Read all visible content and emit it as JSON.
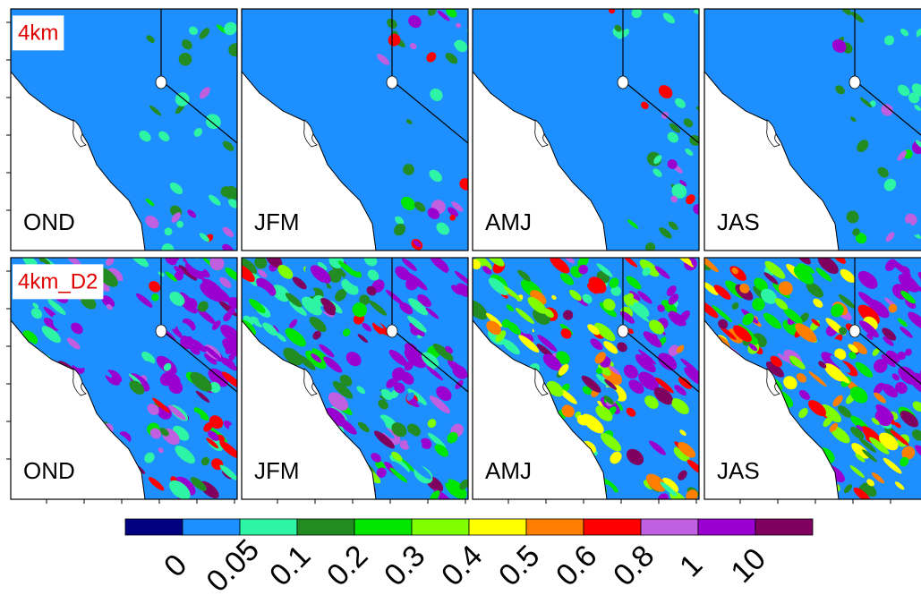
{
  "rows": [
    {
      "label": "4km",
      "panels": [
        "OND",
        "JFM",
        "AMJ",
        "JAS"
      ]
    },
    {
      "label": "4km_D2",
      "panels": [
        "OND",
        "JFM",
        "AMJ",
        "JAS"
      ]
    }
  ],
  "colorbar": {
    "colors": [
      "#000080",
      "#1e8fff",
      "#2ef5a5",
      "#228b22",
      "#00e600",
      "#7fff00",
      "#ffff00",
      "#ff8000",
      "#ff0000",
      "#c060e0",
      "#9a00d0",
      "#800060"
    ],
    "labels": [
      "0",
      "0.05",
      "0.1",
      "0.2",
      "0.3",
      "0.4",
      "0.5",
      "0.6",
      "0.8",
      "1",
      "10"
    ]
  }
}
